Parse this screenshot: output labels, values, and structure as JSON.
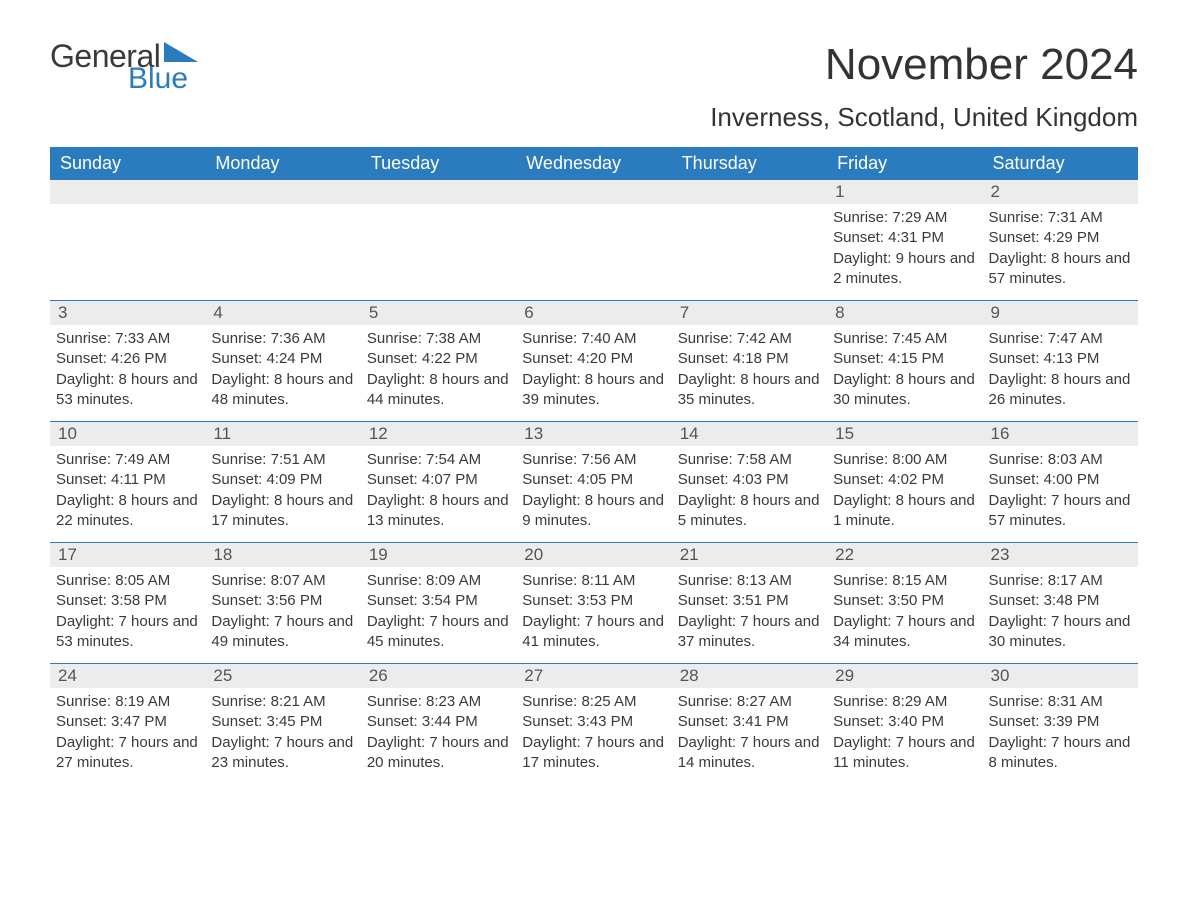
{
  "logo": {
    "text_general": "General",
    "text_blue": "Blue",
    "icon_color": "#2b7bbf"
  },
  "title": "November 2024",
  "location": "Inverness, Scotland, United Kingdom",
  "colors": {
    "header_bg": "#2b7bbf",
    "header_text": "#ffffff",
    "daynum_bg": "#ececec",
    "border": "#2b7bbf",
    "body_text": "#3a3a3a"
  },
  "day_names": [
    "Sunday",
    "Monday",
    "Tuesday",
    "Wednesday",
    "Thursday",
    "Friday",
    "Saturday"
  ],
  "weeks": [
    [
      null,
      null,
      null,
      null,
      null,
      {
        "num": "1",
        "sunrise": "Sunrise: 7:29 AM",
        "sunset": "Sunset: 4:31 PM",
        "daylight": "Daylight: 9 hours and 2 minutes."
      },
      {
        "num": "2",
        "sunrise": "Sunrise: 7:31 AM",
        "sunset": "Sunset: 4:29 PM",
        "daylight": "Daylight: 8 hours and 57 minutes."
      }
    ],
    [
      {
        "num": "3",
        "sunrise": "Sunrise: 7:33 AM",
        "sunset": "Sunset: 4:26 PM",
        "daylight": "Daylight: 8 hours and 53 minutes."
      },
      {
        "num": "4",
        "sunrise": "Sunrise: 7:36 AM",
        "sunset": "Sunset: 4:24 PM",
        "daylight": "Daylight: 8 hours and 48 minutes."
      },
      {
        "num": "5",
        "sunrise": "Sunrise: 7:38 AM",
        "sunset": "Sunset: 4:22 PM",
        "daylight": "Daylight: 8 hours and 44 minutes."
      },
      {
        "num": "6",
        "sunrise": "Sunrise: 7:40 AM",
        "sunset": "Sunset: 4:20 PM",
        "daylight": "Daylight: 8 hours and 39 minutes."
      },
      {
        "num": "7",
        "sunrise": "Sunrise: 7:42 AM",
        "sunset": "Sunset: 4:18 PM",
        "daylight": "Daylight: 8 hours and 35 minutes."
      },
      {
        "num": "8",
        "sunrise": "Sunrise: 7:45 AM",
        "sunset": "Sunset: 4:15 PM",
        "daylight": "Daylight: 8 hours and 30 minutes."
      },
      {
        "num": "9",
        "sunrise": "Sunrise: 7:47 AM",
        "sunset": "Sunset: 4:13 PM",
        "daylight": "Daylight: 8 hours and 26 minutes."
      }
    ],
    [
      {
        "num": "10",
        "sunrise": "Sunrise: 7:49 AM",
        "sunset": "Sunset: 4:11 PM",
        "daylight": "Daylight: 8 hours and 22 minutes."
      },
      {
        "num": "11",
        "sunrise": "Sunrise: 7:51 AM",
        "sunset": "Sunset: 4:09 PM",
        "daylight": "Daylight: 8 hours and 17 minutes."
      },
      {
        "num": "12",
        "sunrise": "Sunrise: 7:54 AM",
        "sunset": "Sunset: 4:07 PM",
        "daylight": "Daylight: 8 hours and 13 minutes."
      },
      {
        "num": "13",
        "sunrise": "Sunrise: 7:56 AM",
        "sunset": "Sunset: 4:05 PM",
        "daylight": "Daylight: 8 hours and 9 minutes."
      },
      {
        "num": "14",
        "sunrise": "Sunrise: 7:58 AM",
        "sunset": "Sunset: 4:03 PM",
        "daylight": "Daylight: 8 hours and 5 minutes."
      },
      {
        "num": "15",
        "sunrise": "Sunrise: 8:00 AM",
        "sunset": "Sunset: 4:02 PM",
        "daylight": "Daylight: 8 hours and 1 minute."
      },
      {
        "num": "16",
        "sunrise": "Sunrise: 8:03 AM",
        "sunset": "Sunset: 4:00 PM",
        "daylight": "Daylight: 7 hours and 57 minutes."
      }
    ],
    [
      {
        "num": "17",
        "sunrise": "Sunrise: 8:05 AM",
        "sunset": "Sunset: 3:58 PM",
        "daylight": "Daylight: 7 hours and 53 minutes."
      },
      {
        "num": "18",
        "sunrise": "Sunrise: 8:07 AM",
        "sunset": "Sunset: 3:56 PM",
        "daylight": "Daylight: 7 hours and 49 minutes."
      },
      {
        "num": "19",
        "sunrise": "Sunrise: 8:09 AM",
        "sunset": "Sunset: 3:54 PM",
        "daylight": "Daylight: 7 hours and 45 minutes."
      },
      {
        "num": "20",
        "sunrise": "Sunrise: 8:11 AM",
        "sunset": "Sunset: 3:53 PM",
        "daylight": "Daylight: 7 hours and 41 minutes."
      },
      {
        "num": "21",
        "sunrise": "Sunrise: 8:13 AM",
        "sunset": "Sunset: 3:51 PM",
        "daylight": "Daylight: 7 hours and 37 minutes."
      },
      {
        "num": "22",
        "sunrise": "Sunrise: 8:15 AM",
        "sunset": "Sunset: 3:50 PM",
        "daylight": "Daylight: 7 hours and 34 minutes."
      },
      {
        "num": "23",
        "sunrise": "Sunrise: 8:17 AM",
        "sunset": "Sunset: 3:48 PM",
        "daylight": "Daylight: 7 hours and 30 minutes."
      }
    ],
    [
      {
        "num": "24",
        "sunrise": "Sunrise: 8:19 AM",
        "sunset": "Sunset: 3:47 PM",
        "daylight": "Daylight: 7 hours and 27 minutes."
      },
      {
        "num": "25",
        "sunrise": "Sunrise: 8:21 AM",
        "sunset": "Sunset: 3:45 PM",
        "daylight": "Daylight: 7 hours and 23 minutes."
      },
      {
        "num": "26",
        "sunrise": "Sunrise: 8:23 AM",
        "sunset": "Sunset: 3:44 PM",
        "daylight": "Daylight: 7 hours and 20 minutes."
      },
      {
        "num": "27",
        "sunrise": "Sunrise: 8:25 AM",
        "sunset": "Sunset: 3:43 PM",
        "daylight": "Daylight: 7 hours and 17 minutes."
      },
      {
        "num": "28",
        "sunrise": "Sunrise: 8:27 AM",
        "sunset": "Sunset: 3:41 PM",
        "daylight": "Daylight: 7 hours and 14 minutes."
      },
      {
        "num": "29",
        "sunrise": "Sunrise: 8:29 AM",
        "sunset": "Sunset: 3:40 PM",
        "daylight": "Daylight: 7 hours and 11 minutes."
      },
      {
        "num": "30",
        "sunrise": "Sunrise: 8:31 AM",
        "sunset": "Sunset: 3:39 PM",
        "daylight": "Daylight: 7 hours and 8 minutes."
      }
    ]
  ]
}
